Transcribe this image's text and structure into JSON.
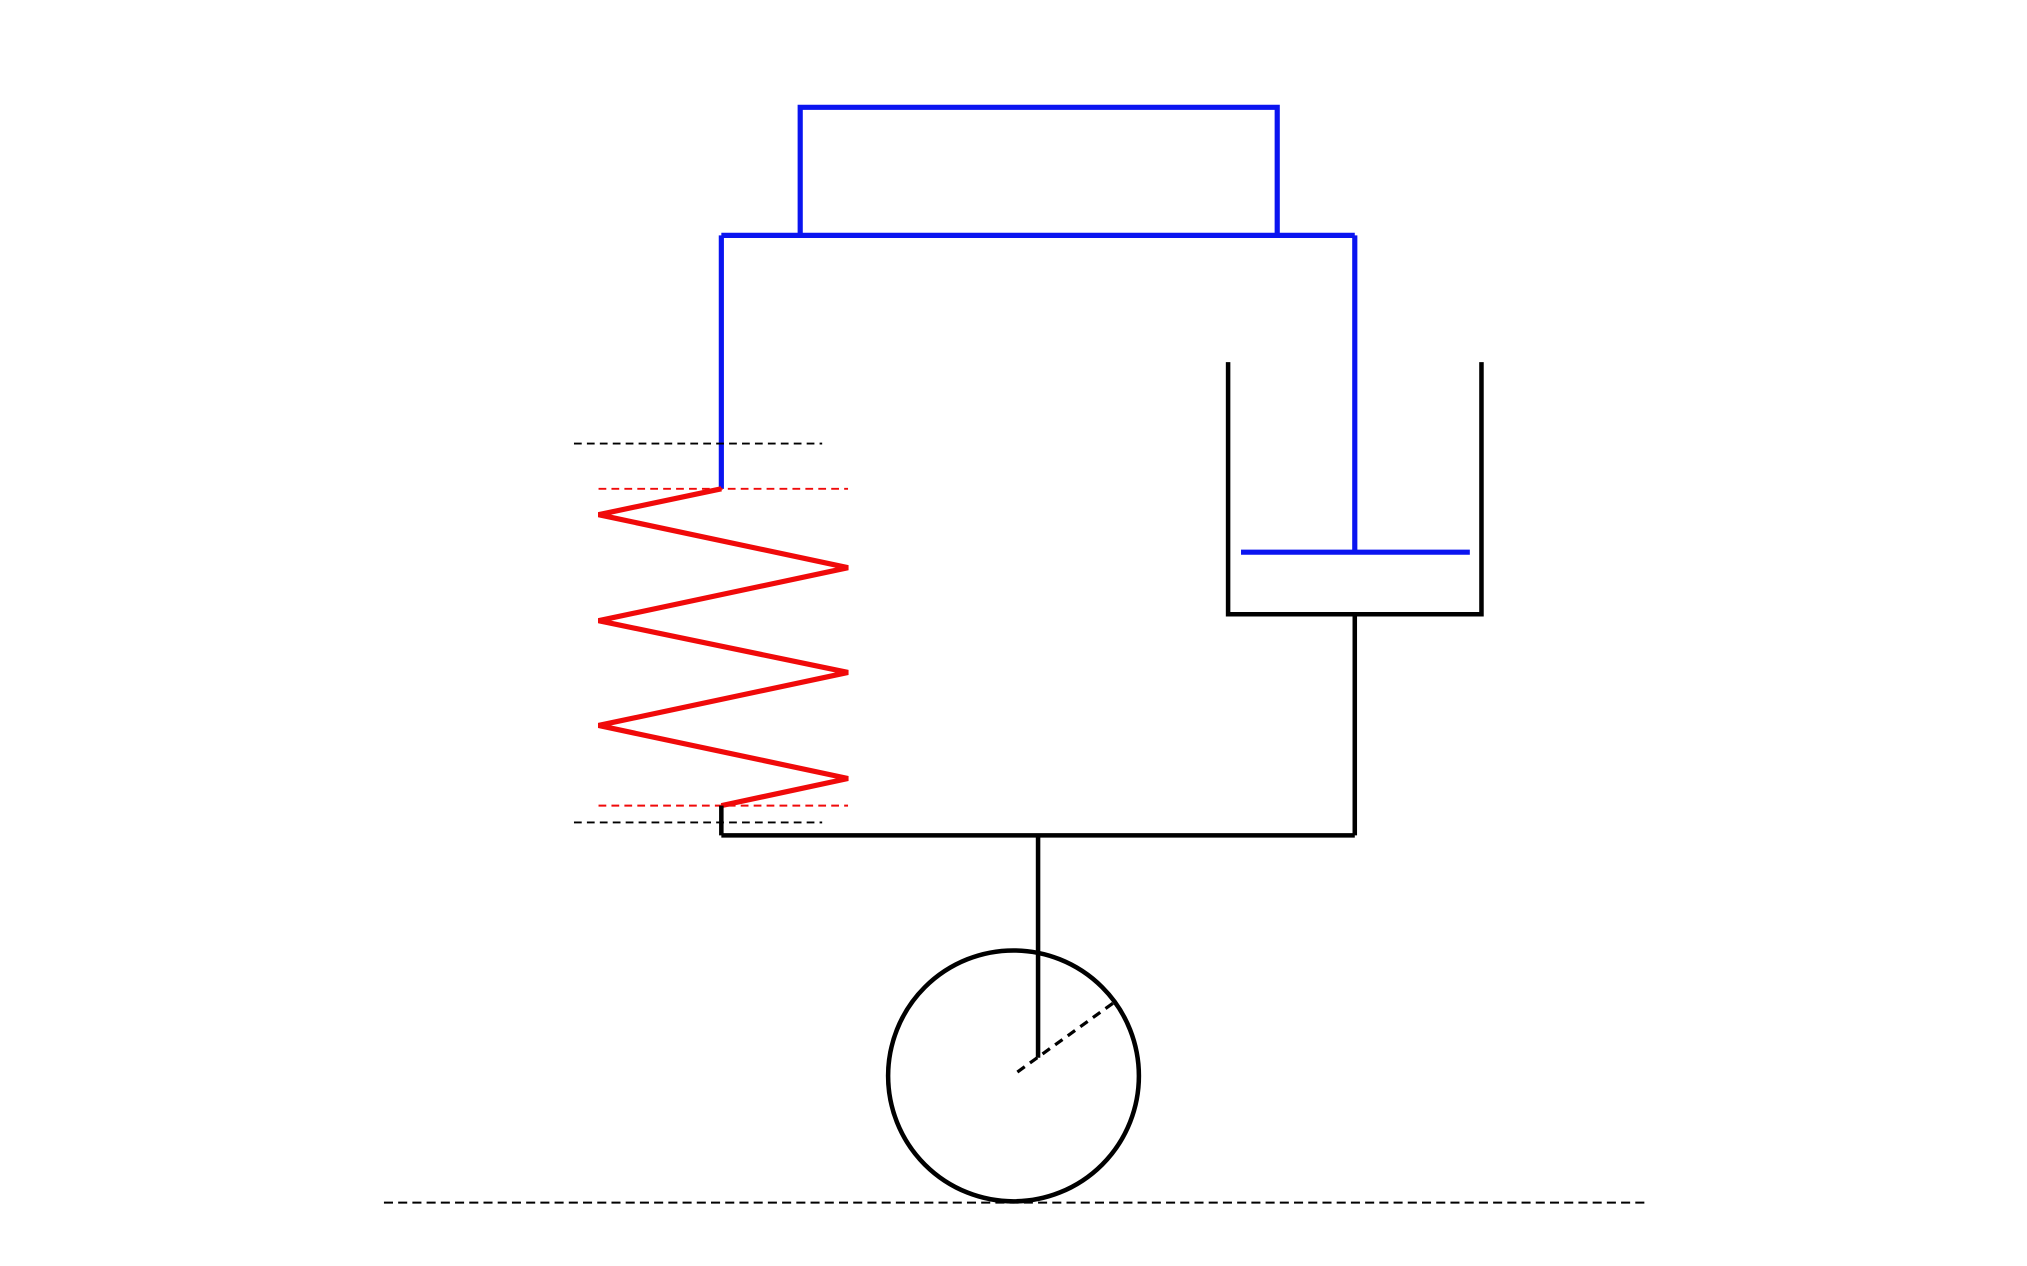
{
  "diagram": {
    "type": "mass-spring-damper suspension schematic",
    "colors": {
      "body": "#0a14f0",
      "spring": "#f00a0a",
      "structure": "#000000",
      "spring_reference": "#f00a0a",
      "reference_lines": "#000000",
      "background": "#ffffff"
    },
    "components": {
      "sprung_mass": {
        "icon": "rectangle-frame"
      },
      "spring": {
        "icon": "zigzag-spring",
        "coils": 3
      },
      "damper": {
        "icon": "dashpot"
      },
      "wheel": {
        "icon": "circle-with-radius"
      },
      "ground": {
        "icon": "dashed-line"
      }
    }
  }
}
